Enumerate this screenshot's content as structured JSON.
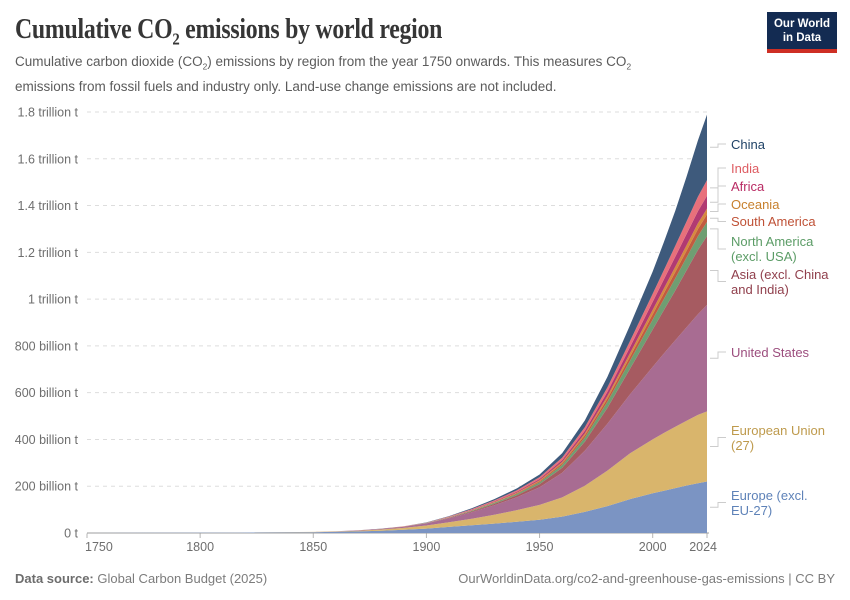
{
  "header": {
    "title": {
      "p1": "Cumulative CO",
      "sub": "2",
      "p2": " emissions by world region"
    },
    "subtitle": {
      "p1": "Cumulative carbon dioxide (CO",
      "s1": "2",
      "p2": ") emissions by region from the year 1750 onwards. This measures CO",
      "s2": "2",
      "p3": " emissions from fossil fuels and industry only. Land-use change emissions are not included."
    },
    "logo": {
      "line1": "Our World",
      "line2": "in Data",
      "bg_color": "#132B52",
      "accent_color": "#CE2F24"
    }
  },
  "chart_data": {
    "type": "area",
    "stacked": true,
    "title": "Cumulative CO2 emissions by world region",
    "unit": "tonnes CO2, cumulative since 1750",
    "grid": true,
    "legend_position": "right",
    "x_years": [
      1750,
      1800,
      1850,
      1860,
      1870,
      1880,
      1890,
      1900,
      1910,
      1920,
      1930,
      1940,
      1950,
      1960,
      1970,
      1980,
      1990,
      2000,
      2005,
      2010,
      2015,
      2020,
      2024
    ],
    "xlim": [
      1750,
      2024
    ],
    "ylim_billion_t": [
      0,
      1800
    ],
    "yticks": [
      {
        "value": 0,
        "label": "0 t"
      },
      {
        "value": 200,
        "label": "200 billion t"
      },
      {
        "value": 400,
        "label": "400 billion t"
      },
      {
        "value": 600,
        "label": "600 billion t"
      },
      {
        "value": 800,
        "label": "800 billion t"
      },
      {
        "value": 1000,
        "label": "1 trillion t"
      },
      {
        "value": 1200,
        "label": "1.2 trillion t"
      },
      {
        "value": 1400,
        "label": "1.4 trillion t"
      },
      {
        "value": 1600,
        "label": "1.6 trillion t"
      },
      {
        "value": 1800,
        "label": "1.8 trillion t"
      }
    ],
    "xticks": [
      {
        "value": 1750,
        "label": "1750"
      },
      {
        "value": 1800,
        "label": "1800"
      },
      {
        "value": 1850,
        "label": "1850"
      },
      {
        "value": 1900,
        "label": "1900"
      },
      {
        "value": 1950,
        "label": "1950"
      },
      {
        "value": 2000,
        "label": "2000"
      },
      {
        "value": 2024,
        "label": "2024"
      }
    ],
    "series": [
      {
        "id": "europe-excl-eu27",
        "name": "Europe (excl. EU-27)",
        "label_lines": [
          "Europe (excl.",
          "EU-27)"
        ],
        "fill": "#7B94C3",
        "label_color": "#5E82B8",
        "values_billion_t": [
          0,
          0.9,
          3.5,
          5,
          7,
          10,
          14,
          19,
          26,
          33,
          40,
          48,
          57,
          70,
          90,
          115,
          145,
          170,
          181,
          192,
          203,
          213,
          220
        ]
      },
      {
        "id": "eu-27",
        "name": "European Union (27)",
        "label_lines": [
          "European Union",
          "(27)"
        ],
        "fill": "#D9B56C",
        "label_color": "#BE9A4C",
        "values_billion_t": [
          0,
          0.1,
          1,
          1.8,
          3,
          5,
          8,
          13,
          20,
          28,
          38,
          50,
          63,
          82,
          112,
          152,
          196,
          230,
          247,
          262,
          277,
          292,
          300
        ]
      },
      {
        "id": "united-states",
        "name": "United States",
        "label_lines": [
          "United States"
        ],
        "fill": "#A86C92",
        "label_color": "#9C4E7E",
        "values_billion_t": [
          0,
          0,
          0.2,
          0.6,
          1.3,
          2.6,
          5,
          9,
          17,
          28,
          41,
          55,
          76,
          106,
          150,
          200,
          252,
          310,
          340,
          370,
          400,
          430,
          455
        ]
      },
      {
        "id": "asia-excl-china-india",
        "name": "Asia (excl. China and India)",
        "label_lines": [
          "Asia (excl. China",
          "and India)"
        ],
        "fill": "#A65B61",
        "label_color": "#903F4C",
        "values_billion_t": [
          0,
          0,
          0.05,
          0.1,
          0.2,
          0.35,
          0.6,
          1,
          2,
          3.5,
          5.5,
          8.5,
          13,
          21,
          38,
          68,
          110,
          160,
          186,
          213,
          243,
          275,
          295
        ]
      },
      {
        "id": "north-america-excl-usa",
        "name": "North America (excl. USA)",
        "label_lines": [
          "North America",
          "(excl. USA)"
        ],
        "fill": "#6F9E72",
        "label_color": "#5B9C66",
        "values_billion_t": [
          0,
          0,
          0,
          0,
          0.05,
          0.1,
          0.3,
          0.6,
          1.3,
          2.5,
          4,
          5.5,
          8,
          12,
          18,
          26,
          34,
          43,
          47.5,
          52,
          55.5,
          58.5,
          60
        ]
      },
      {
        "id": "south-america",
        "name": "South America",
        "label_lines": [
          "South America"
        ],
        "fill": "#C25B3F",
        "label_color": "#BF5136",
        "values_billion_t": [
          0,
          0,
          0,
          0,
          0.02,
          0.05,
          0.1,
          0.3,
          0.7,
          1.2,
          2,
          3,
          4.5,
          6.5,
          9.5,
          13.5,
          17.5,
          22,
          24.5,
          27,
          29,
          31,
          32
        ]
      },
      {
        "id": "oceania",
        "name": "Oceania",
        "label_lines": [
          "Oceania"
        ],
        "fill": "#D68A3F",
        "label_color": "#C7802D",
        "values_billion_t": [
          0,
          0,
          0,
          0.02,
          0.05,
          0.1,
          0.2,
          0.4,
          0.8,
          1.3,
          2,
          2.8,
          4,
          6,
          8,
          11,
          15,
          19,
          20.5,
          22,
          23.3,
          24.5,
          25
        ]
      },
      {
        "id": "africa",
        "name": "Africa",
        "label_lines": [
          "Africa"
        ],
        "fill": "#B13A72",
        "label_color": "#B92A63",
        "values_billion_t": [
          0,
          0,
          0,
          0.01,
          0.03,
          0.08,
          0.15,
          0.3,
          0.8,
          1.5,
          2.5,
          3.8,
          5.5,
          8,
          12,
          18,
          26,
          34,
          38.5,
          43,
          47.5,
          52,
          55
        ]
      },
      {
        "id": "india",
        "name": "India",
        "label_lines": [
          "India"
        ],
        "fill": "#E8707B",
        "label_color": "#DE5C62",
        "values_billion_t": [
          0,
          0,
          0.01,
          0.05,
          0.1,
          0.25,
          0.5,
          1,
          2,
          3.2,
          4.5,
          6,
          8,
          11,
          14.5,
          19,
          26,
          35,
          40,
          47,
          54,
          62,
          67
        ]
      },
      {
        "id": "china",
        "name": "China",
        "label_lines": [
          "China"
        ],
        "fill": "#3E5A7C",
        "label_color": "#1F4266",
        "values_billion_t": [
          0,
          0,
          0.01,
          0.05,
          0.1,
          0.2,
          0.4,
          0.8,
          1.8,
          3.5,
          5.5,
          8,
          11,
          19,
          29,
          45,
          68,
          95,
          120,
          150,
          192,
          240,
          280
        ]
      }
    ]
  },
  "footer": {
    "source_label": "Data source:",
    "source_text": " Global Carbon Budget (2025)",
    "right_text": "OurWorldinData.org/co2-and-greenhouse-gas-emissions | CC BY"
  }
}
